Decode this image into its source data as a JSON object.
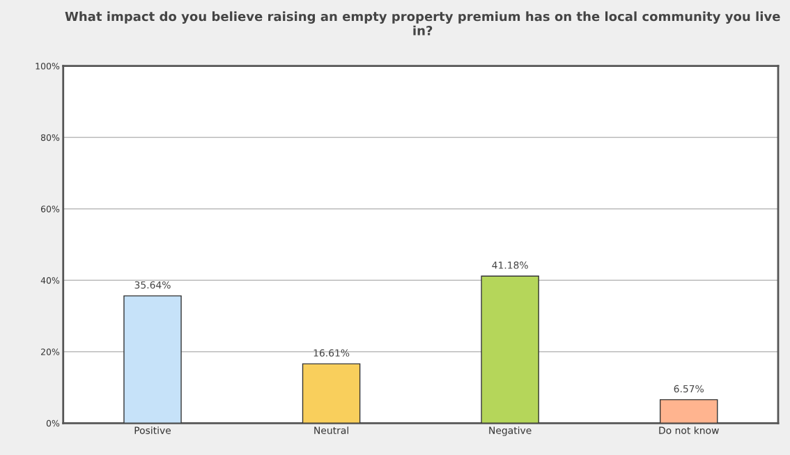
{
  "chart_data": {
    "type": "bar",
    "title": "What impact do you believe raising an empty property premium has on the local community you live in?",
    "categories": [
      "Positive",
      "Neutral",
      "Negative",
      "Do not know"
    ],
    "values": [
      35.64,
      16.61,
      41.18,
      6.57
    ],
    "colors": [
      "#c6e2f9",
      "#f9cf5c",
      "#b5d65a",
      "#ffb48f"
    ],
    "value_labels": [
      "35.64%",
      "16.61%",
      "41.18%",
      "6.57%"
    ],
    "ylim": [
      0,
      100
    ],
    "yticks": [
      {
        "value": 0,
        "label": "0%"
      },
      {
        "value": 20,
        "label": "20%"
      },
      {
        "value": 40,
        "label": "40%"
      },
      {
        "value": 60,
        "label": "60%"
      },
      {
        "value": 80,
        "label": "80%"
      },
      {
        "value": 100,
        "label": "100%"
      }
    ],
    "grid": "y",
    "legend": false
  }
}
